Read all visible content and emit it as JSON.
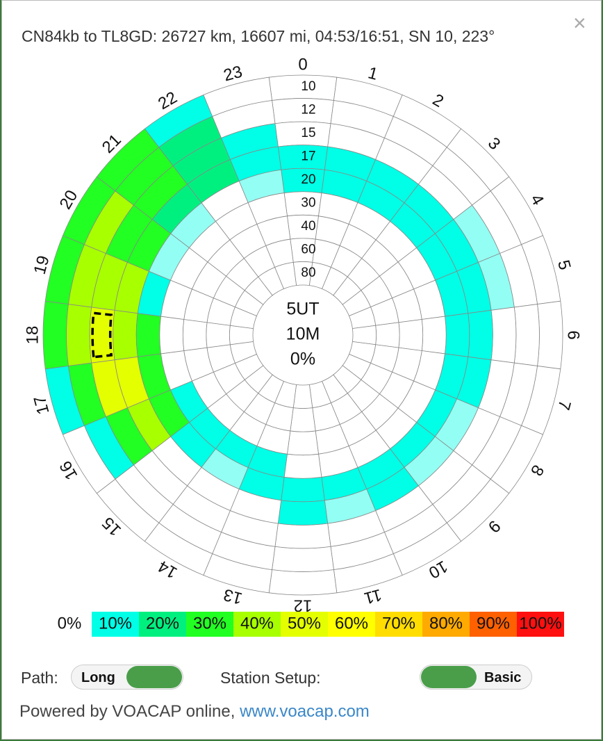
{
  "header": {
    "title": "CN84kb to TL8GD: 26727 km, 16607 mi, 04:53/16:51, SN 10, 223°",
    "close": "×"
  },
  "chart": {
    "hours": [
      0,
      1,
      2,
      3,
      4,
      5,
      6,
      7,
      8,
      9,
      10,
      11,
      12,
      13,
      14,
      15,
      16,
      17,
      18,
      19,
      20,
      21,
      22,
      23
    ],
    "bands": [
      10,
      12,
      15,
      17,
      20,
      30,
      40,
      60,
      80
    ],
    "center": [
      "5UT",
      "10M",
      "0%"
    ],
    "cells": [
      [
        0,
        0,
        0,
        10,
        10,
        0,
        0,
        0,
        0
      ],
      [
        0,
        0,
        0,
        10,
        10,
        0,
        0,
        0,
        0
      ],
      [
        0,
        0,
        0,
        10,
        10,
        0,
        0,
        0,
        0
      ],
      [
        0,
        0,
        0,
        10,
        10,
        0,
        0,
        0,
        0
      ],
      [
        0,
        0,
        5,
        10,
        10,
        0,
        0,
        0,
        0
      ],
      [
        0,
        0,
        5,
        10,
        10,
        0,
        0,
        0,
        0
      ],
      [
        0,
        0,
        0,
        10,
        10,
        0,
        0,
        0,
        0
      ],
      [
        0,
        0,
        0,
        10,
        10,
        0,
        0,
        0,
        0
      ],
      [
        0,
        0,
        0,
        5,
        10,
        0,
        0,
        0,
        0
      ],
      [
        0,
        0,
        0,
        5,
        10,
        0,
        0,
        0,
        0
      ],
      [
        0,
        0,
        0,
        10,
        10,
        0,
        0,
        0,
        0
      ],
      [
        0,
        0,
        0,
        5,
        10,
        0,
        0,
        0,
        0
      ],
      [
        0,
        0,
        0,
        10,
        10,
        0,
        0,
        0,
        0
      ],
      [
        0,
        0,
        0,
        0,
        10,
        10,
        0,
        0,
        0
      ],
      [
        0,
        0,
        0,
        0,
        5,
        10,
        0,
        0,
        0
      ],
      [
        0,
        0,
        0,
        0,
        10,
        10,
        0,
        0,
        0
      ],
      [
        0,
        10,
        30,
        40,
        30,
        10,
        0,
        0,
        0
      ],
      [
        10,
        30,
        50,
        50,
        30,
        0,
        0,
        0,
        0
      ],
      [
        30,
        40,
        50,
        40,
        30,
        0,
        0,
        0,
        0
      ],
      [
        30,
        40,
        40,
        40,
        10,
        0,
        0,
        0,
        0
      ],
      [
        30,
        40,
        30,
        30,
        5,
        0,
        0,
        0,
        0
      ],
      [
        30,
        30,
        30,
        20,
        5,
        0,
        0,
        0,
        0
      ],
      [
        10,
        20,
        20,
        20,
        0,
        0,
        0,
        0,
        0
      ],
      [
        0,
        0,
        10,
        10,
        5,
        0,
        0,
        0,
        0
      ]
    ]
  },
  "legend": {
    "labels": [
      "0%",
      "10%",
      "20%",
      "30%",
      "40%",
      "50%",
      "60%",
      "70%",
      "80%",
      "90%",
      "100%"
    ],
    "colors": [
      "#ffffff",
      "#00ffe6",
      "#00f080",
      "#22ff22",
      "#a8ff00",
      "#e4ff00",
      "#ffff00",
      "#ffdd00",
      "#ffaa00",
      "#ff6000",
      "#ff1010"
    ]
  },
  "controls": {
    "path_label": "Path:",
    "path_value": "Long",
    "setup_label": "Station Setup:",
    "setup_value": "Basic"
  },
  "footer": {
    "text": "Powered by VOACAP online, ",
    "link": "www.voacap.com"
  }
}
